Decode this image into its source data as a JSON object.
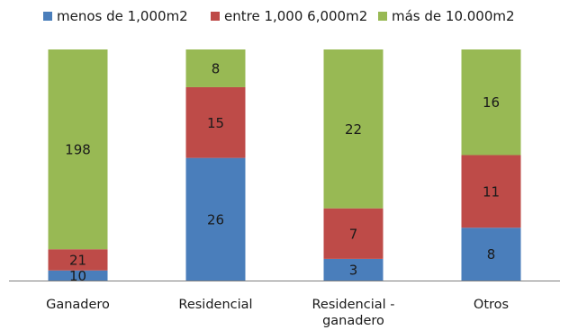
{
  "chart_data": {
    "type": "bar",
    "stacked": true,
    "percent_stacked": true,
    "categories": [
      [
        "Ganadero"
      ],
      [
        "Residencial"
      ],
      [
        "Residencial -",
        "ganadero"
      ],
      [
        "Otros"
      ]
    ],
    "series": [
      {
        "name": "menos de 1,000m2",
        "color": "#4a7ebb",
        "values": [
          10,
          26,
          3,
          8
        ]
      },
      {
        "name": "entre 1,000  6,000m2",
        "color": "#be4b48",
        "values": [
          21,
          15,
          7,
          11
        ]
      },
      {
        "name": "más de 10.000m2",
        "color": "#98b954",
        "values": [
          198,
          8,
          22,
          16
        ]
      }
    ],
    "title": "",
    "xlabel": "",
    "ylabel": "",
    "legend": "top",
    "grid": false,
    "y_axis_visible": false
  }
}
